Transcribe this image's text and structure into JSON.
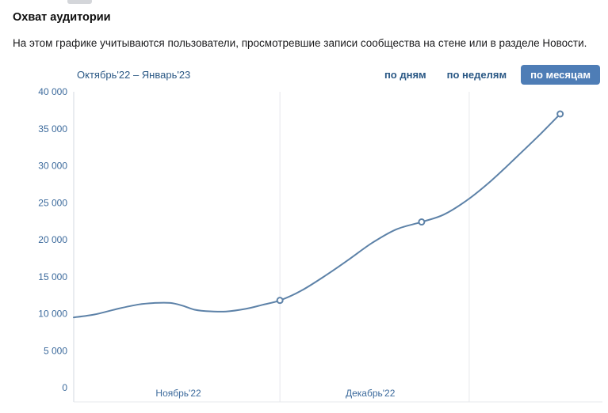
{
  "page": {
    "title": "Охват аудитории",
    "description": "На этом графике учитываются пользователи, просмотревшие записи сообщества на стене или в разделе Новости."
  },
  "controls": {
    "date_range": "Октябрь'22 – Январь'23",
    "tabs": [
      {
        "label": "по дням",
        "active": false
      },
      {
        "label": "по неделям",
        "active": false
      },
      {
        "label": "по месяцам",
        "active": true
      }
    ]
  },
  "colors": {
    "accent": "#2a5885",
    "tab_active_bg": "#4e7db6",
    "tab_active_text": "#ffffff",
    "line": "#5d82a8",
    "marker_fill": "#ffffff",
    "grid": "#e7e8ec",
    "axis": "#d3d9e0",
    "tick_text": "#3c6a9c"
  },
  "chart_data": {
    "type": "line",
    "title": "Охват аудитории",
    "legend": "none",
    "grid": "vertical-only",
    "ylim": [
      0,
      40000
    ],
    "y_ticks": [
      {
        "value": 40000,
        "label": "40 000"
      },
      {
        "value": 35000,
        "label": "35 000"
      },
      {
        "value": 30000,
        "label": "30 000"
      },
      {
        "value": 25000,
        "label": "25 000"
      },
      {
        "value": 20000,
        "label": "20 000"
      },
      {
        "value": 15000,
        "label": "15 000"
      },
      {
        "value": 10000,
        "label": "10 000"
      },
      {
        "value": 5000,
        "label": "5 000"
      },
      {
        "value": 0,
        "label": "0"
      }
    ],
    "x_labels": [
      {
        "label": "Ноябрь'22",
        "x": 0.198
      },
      {
        "label": "Декабрь'22",
        "x": 0.561
      }
    ],
    "gridline_x": [
      0.39,
      0.748
    ],
    "series": [
      {
        "name": "Охват аудитории",
        "points": [
          {
            "x": 0.0,
            "v": 9500
          },
          {
            "x": 0.04,
            "v": 9900
          },
          {
            "x": 0.085,
            "v": 10700
          },
          {
            "x": 0.123,
            "v": 11250
          },
          {
            "x": 0.153,
            "v": 11450
          },
          {
            "x": 0.183,
            "v": 11450
          },
          {
            "x": 0.205,
            "v": 11100
          },
          {
            "x": 0.228,
            "v": 10550
          },
          {
            "x": 0.25,
            "v": 10350
          },
          {
            "x": 0.288,
            "v": 10300
          },
          {
            "x": 0.325,
            "v": 10650
          },
          {
            "x": 0.357,
            "v": 11200
          },
          {
            "x": 0.39,
            "v": 11800
          },
          {
            "x": 0.43,
            "v": 13100
          },
          {
            "x": 0.475,
            "v": 15100
          },
          {
            "x": 0.52,
            "v": 17300
          },
          {
            "x": 0.565,
            "v": 19600
          },
          {
            "x": 0.61,
            "v": 21400
          },
          {
            "x": 0.658,
            "v": 22400
          },
          {
            "x": 0.7,
            "v": 23400
          },
          {
            "x": 0.745,
            "v": 25400
          },
          {
            "x": 0.79,
            "v": 28000
          },
          {
            "x": 0.835,
            "v": 31000
          },
          {
            "x": 0.88,
            "v": 34100
          },
          {
            "x": 0.92,
            "v": 37000
          }
        ],
        "markers": [
          {
            "x": 0.39,
            "v": 11800
          },
          {
            "x": 0.658,
            "v": 22400
          },
          {
            "x": 0.92,
            "v": 37000
          }
        ]
      }
    ]
  }
}
